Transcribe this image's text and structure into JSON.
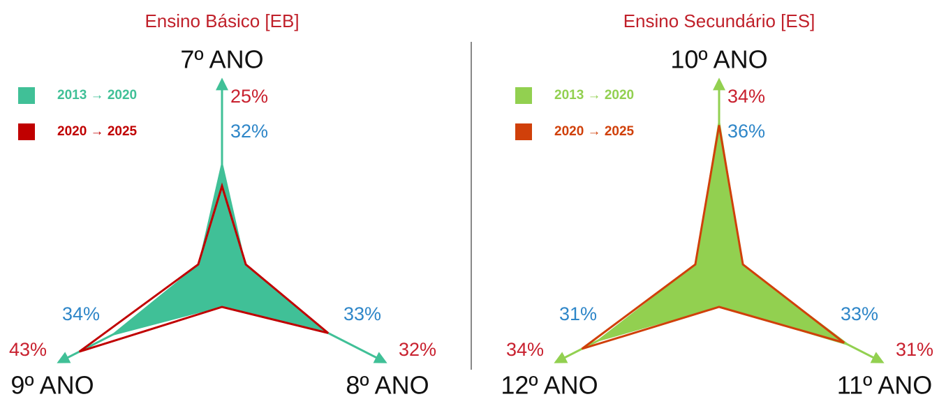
{
  "chart_data": [
    {
      "type": "radar",
      "title": "Ensino Básico [EB]",
      "categories": [
        "7º ANO",
        "8º ANO",
        "9º ANO"
      ],
      "rlim": [
        0,
        45
      ],
      "series": [
        {
          "name": "2013 → 2020",
          "color": "#40c097",
          "fill": true,
          "label_color": "#2e86c8",
          "values": [
            32,
            33,
            34
          ],
          "value_labels": [
            "32%",
            "33%",
            "34%"
          ]
        },
        {
          "name": "2020 → 2025",
          "color": "#c00000",
          "fill": false,
          "label_color": "#c8202e",
          "values": [
            25,
            32,
            43
          ],
          "value_labels": [
            "25%",
            "32%",
            "43%"
          ]
        }
      ]
    },
    {
      "type": "radar",
      "title": "Ensino Secundário [ES]",
      "categories": [
        "10º ANO",
        "11º ANO",
        "12º ANO"
      ],
      "rlim": [
        0,
        37
      ],
      "series": [
        {
          "name": "2013 → 2020",
          "color": "#92d050",
          "fill": true,
          "label_color": "#2e86c8",
          "values": [
            36,
            33,
            31
          ],
          "value_labels": [
            "36%",
            "33%",
            "31%"
          ]
        },
        {
          "name": "2020 → 2025",
          "color": "#d0400a",
          "fill": false,
          "label_color": "#c8202e",
          "values": [
            34,
            31,
            34
          ],
          "value_labels": [
            "34%",
            "31%",
            "34%"
          ]
        }
      ]
    }
  ]
}
